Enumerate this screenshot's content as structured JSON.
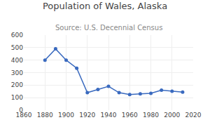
{
  "chart_data": {
    "type": "line",
    "title": "Population of Wales, Alaska",
    "subtitle": "Source: U.S. Decennial Census",
    "x": [
      1880,
      1890,
      1900,
      1910,
      1920,
      1930,
      1940,
      1950,
      1960,
      1970,
      1980,
      1990,
      2000,
      2010
    ],
    "values": [
      400,
      490,
      400,
      335,
      140,
      165,
      190,
      140,
      125,
      130,
      135,
      160,
      152,
      145
    ],
    "color": "#3a6abf",
    "marker": "circle",
    "xlim": [
      1860,
      2020
    ],
    "ylim": [
      0,
      600
    ],
    "xticks": [
      1860,
      1880,
      1900,
      1920,
      1940,
      1960,
      1980,
      2000,
      2020
    ],
    "yticks": [
      0,
      100,
      200,
      300,
      400,
      500,
      600
    ],
    "grid": true
  }
}
